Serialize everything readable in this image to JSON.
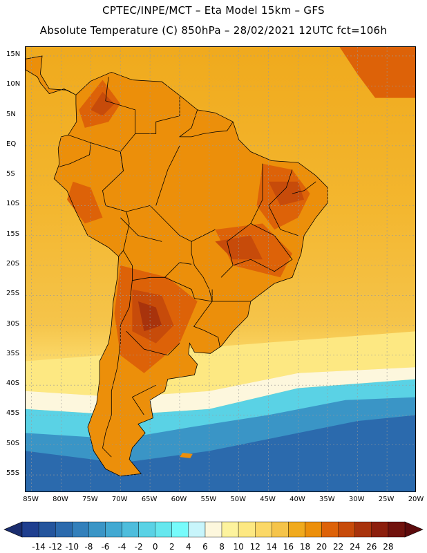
{
  "title": {
    "line1": "CPTEC/INPE/MCT –   Eta Model 15km – GFS",
    "line2": "Absolute Temperature (C) 850hPa – 28/02/2021 12UTC fct=106h"
  },
  "axes": {
    "lat_labels": [
      "15N",
      "10N",
      "5N",
      "EQ",
      "5S",
      "10S",
      "15S",
      "20S",
      "25S",
      "30S",
      "35S",
      "40S",
      "45S",
      "50S",
      "55S"
    ],
    "lat_values": [
      15,
      10,
      5,
      0,
      -5,
      -10,
      -15,
      -20,
      -25,
      -30,
      -35,
      -40,
      -45,
      -50,
      -55
    ],
    "lon_labels": [
      "85W",
      "80W",
      "75W",
      "70W",
      "65W",
      "60W",
      "55W",
      "50W",
      "45W",
      "40W",
      "35W",
      "30W",
      "25W",
      "20W"
    ],
    "lon_values": [
      -85,
      -80,
      -75,
      -70,
      -65,
      -60,
      -55,
      -50,
      -45,
      -40,
      -35,
      -30,
      -25,
      -20
    ],
    "lat_range": [
      -58,
      16.5
    ],
    "lon_range": [
      -86,
      -20
    ],
    "grid": true
  },
  "colorbar": {
    "labels": [
      "-14",
      "-12",
      "-10",
      "-8",
      "-6",
      "-4",
      "-2",
      "0",
      "2",
      "4",
      "6",
      "8",
      "10",
      "12",
      "14",
      "16",
      "18",
      "20",
      "22",
      "24",
      "26",
      "28"
    ],
    "colors": [
      "#1f3f8f",
      "#24559d",
      "#2b6aad",
      "#3380bb",
      "#3a95c6",
      "#42a9d2",
      "#4ebddc",
      "#5ad2e5",
      "#66e7ee",
      "#77fbfb",
      "#c8f5fb",
      "#fdf7dd",
      "#fdf39e",
      "#fde882",
      "#fbd867",
      "#f5c44a",
      "#f0aa1d",
      "#ec8f0a",
      "#dd6208",
      "#c74b0a",
      "#a8330c",
      "#8c1f0d",
      "#70120d"
    ],
    "under_color": "#1a2d6e",
    "over_color": "#5c0a0c"
  },
  "field": {
    "ocean_north": "#f3b62e",
    "ocean_mid": "#f5c44a",
    "ocean_band_yellow": "#fde882",
    "ocean_cream": "#fdf7dd",
    "ocean_cyan": "#5ad2e5",
    "ocean_blue": "#3a95c6",
    "ocean_deep": "#2b6aad",
    "land_base": "#ec8f0a",
    "land_warm": "#dd6208",
    "land_hot": "#c74b0a",
    "land_hottest": "#a8330c",
    "caribbean_hot": "#dd6208",
    "border_color": "#000000",
    "grid_color": "#9a9a9a"
  }
}
